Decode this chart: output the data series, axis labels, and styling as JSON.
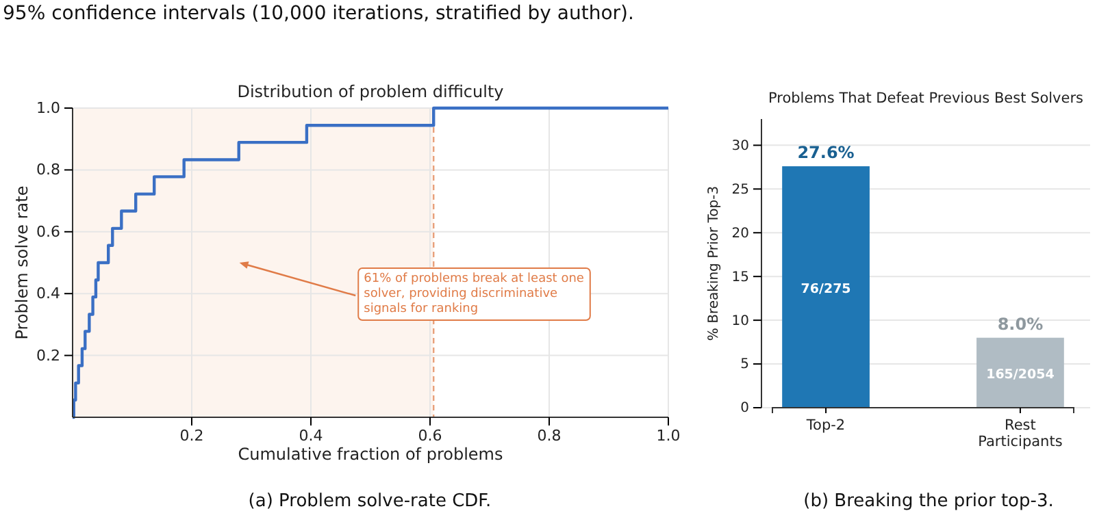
{
  "chart_data": [
    {
      "type": "step",
      "title": "Distribution of problem difficulty",
      "xlabel": "Cumulative fraction of problems",
      "ylabel": "Problem solve rate",
      "x": [
        0,
        0.002,
        0.005,
        0.01,
        0.016,
        0.021,
        0.028,
        0.034,
        0.039,
        0.043,
        0.06,
        0.067,
        0.082,
        0.106,
        0.137,
        0.187,
        0.279,
        0.393,
        0.606,
        1.0
      ],
      "series": [
        {
          "color": "#3a6fc4",
          "values": [
            0,
            0.056,
            0.111,
            0.167,
            0.222,
            0.278,
            0.333,
            0.389,
            0.444,
            0.5,
            0.556,
            0.611,
            0.667,
            0.722,
            0.778,
            0.833,
            0.889,
            0.944,
            1.0,
            1.0
          ]
        }
      ],
      "xlim": [
        0,
        1
      ],
      "ylim": [
        0,
        1
      ],
      "xticks": [
        0.2,
        0.4,
        0.6,
        0.8,
        {
          "value": 1,
          "label": "1.0"
        }
      ],
      "yticks": [
        0.2,
        0.4,
        0.6,
        0.8,
        {
          "value": 1,
          "label": "1.0"
        }
      ],
      "grid": true,
      "line_style": "solid",
      "bands": [
        {
          "axis": "x",
          "from": 0,
          "to": 0.606,
          "color": "#fdf4ee"
        }
      ],
      "ref_lines": [
        {
          "axis": "x",
          "value": 0.606,
          "color": "#e8a07a",
          "line_style": "dashed"
        }
      ],
      "annotations": [
        "61% of problems break at least one solver, providing discriminative signals for ranking",
        "(a) Problem solve-rate CDF.",
        "95% confidence intervals (10,000 iterations, stratified by author)."
      ]
    },
    {
      "type": "bar",
      "title": "Problems That Defeat Previous Best Solvers",
      "ylabel": "% Breaking Prior Top-3",
      "categories": [
        "Top-2",
        "Rest Participants"
      ],
      "values": [
        27.6,
        8.0
      ],
      "colors": [
        "#1f77b4",
        "#b0bcc4"
      ],
      "value_labels": [
        "27.6%",
        "8.0%"
      ],
      "ylim": [
        0,
        33
      ],
      "yticks": [
        0,
        5,
        10,
        15,
        20,
        25,
        30
      ],
      "grid": "y",
      "annotations": [
        "76/275",
        "165/2054",
        "(b) Breaking the prior top-3."
      ]
    }
  ]
}
